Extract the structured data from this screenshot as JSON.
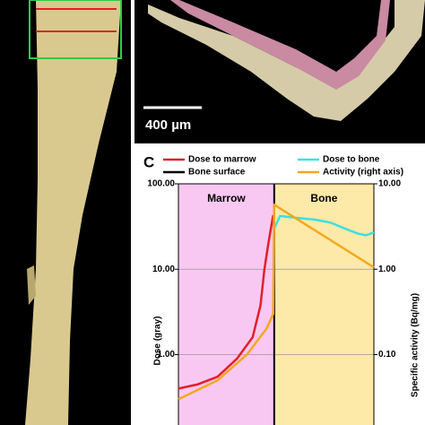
{
  "scale_bar": "400 µm",
  "chart_data": {
    "type": "line",
    "panel_label": "C",
    "log_scale": true,
    "ylabel": "Dose (gray)",
    "y2label": "Specific activity (Bq/mg)",
    "xlim": [
      0,
      100
    ],
    "ylim": [
      0.15,
      100
    ],
    "y2lim": [
      0.015,
      10
    ],
    "yticks": [
      {
        "value": 100,
        "label": "100.00"
      },
      {
        "value": 10,
        "label": "10.00"
      },
      {
        "value": 1,
        "label": "1.00"
      }
    ],
    "y2ticks": [
      {
        "value": 10,
        "label": "10.00"
      },
      {
        "value": 1,
        "label": "1.00"
      },
      {
        "value": 0.1,
        "label": "0.10"
      }
    ],
    "grid": true,
    "regions": [
      {
        "label": "Marrow",
        "from": 0,
        "to": 49,
        "color": "#f9c8f2"
      },
      {
        "label": "Bone",
        "from": 49,
        "to": 100,
        "color": "#fde9a8"
      }
    ],
    "bone_surface": {
      "name": "Bone surface",
      "color": "#000000",
      "x": 49
    },
    "series": [
      {
        "name": "Dose to marrow",
        "color": "#e0202a",
        "x": [
          0,
          10,
          20,
          30,
          38,
          42,
          44,
          46,
          48.5
        ],
        "values": [
          0.4,
          0.45,
          0.55,
          0.9,
          1.6,
          3.8,
          10,
          20,
          43
        ]
      },
      {
        "name": "Dose to bone",
        "color": "#3ee0e0",
        "x": [
          49,
          52,
          60,
          70,
          78,
          85,
          92,
          96,
          100
        ],
        "values": [
          30,
          42,
          40,
          38,
          35,
          30,
          26,
          25,
          27
        ]
      },
      {
        "name": "Activity (right axis)",
        "color": "#f5a81c",
        "axis": "y2",
        "x": [
          0,
          20,
          35,
          45,
          48.5,
          49,
          100
        ],
        "values": [
          0.03,
          0.05,
          0.1,
          0.2,
          0.3,
          5.7,
          1.05
        ]
      }
    ]
  }
}
